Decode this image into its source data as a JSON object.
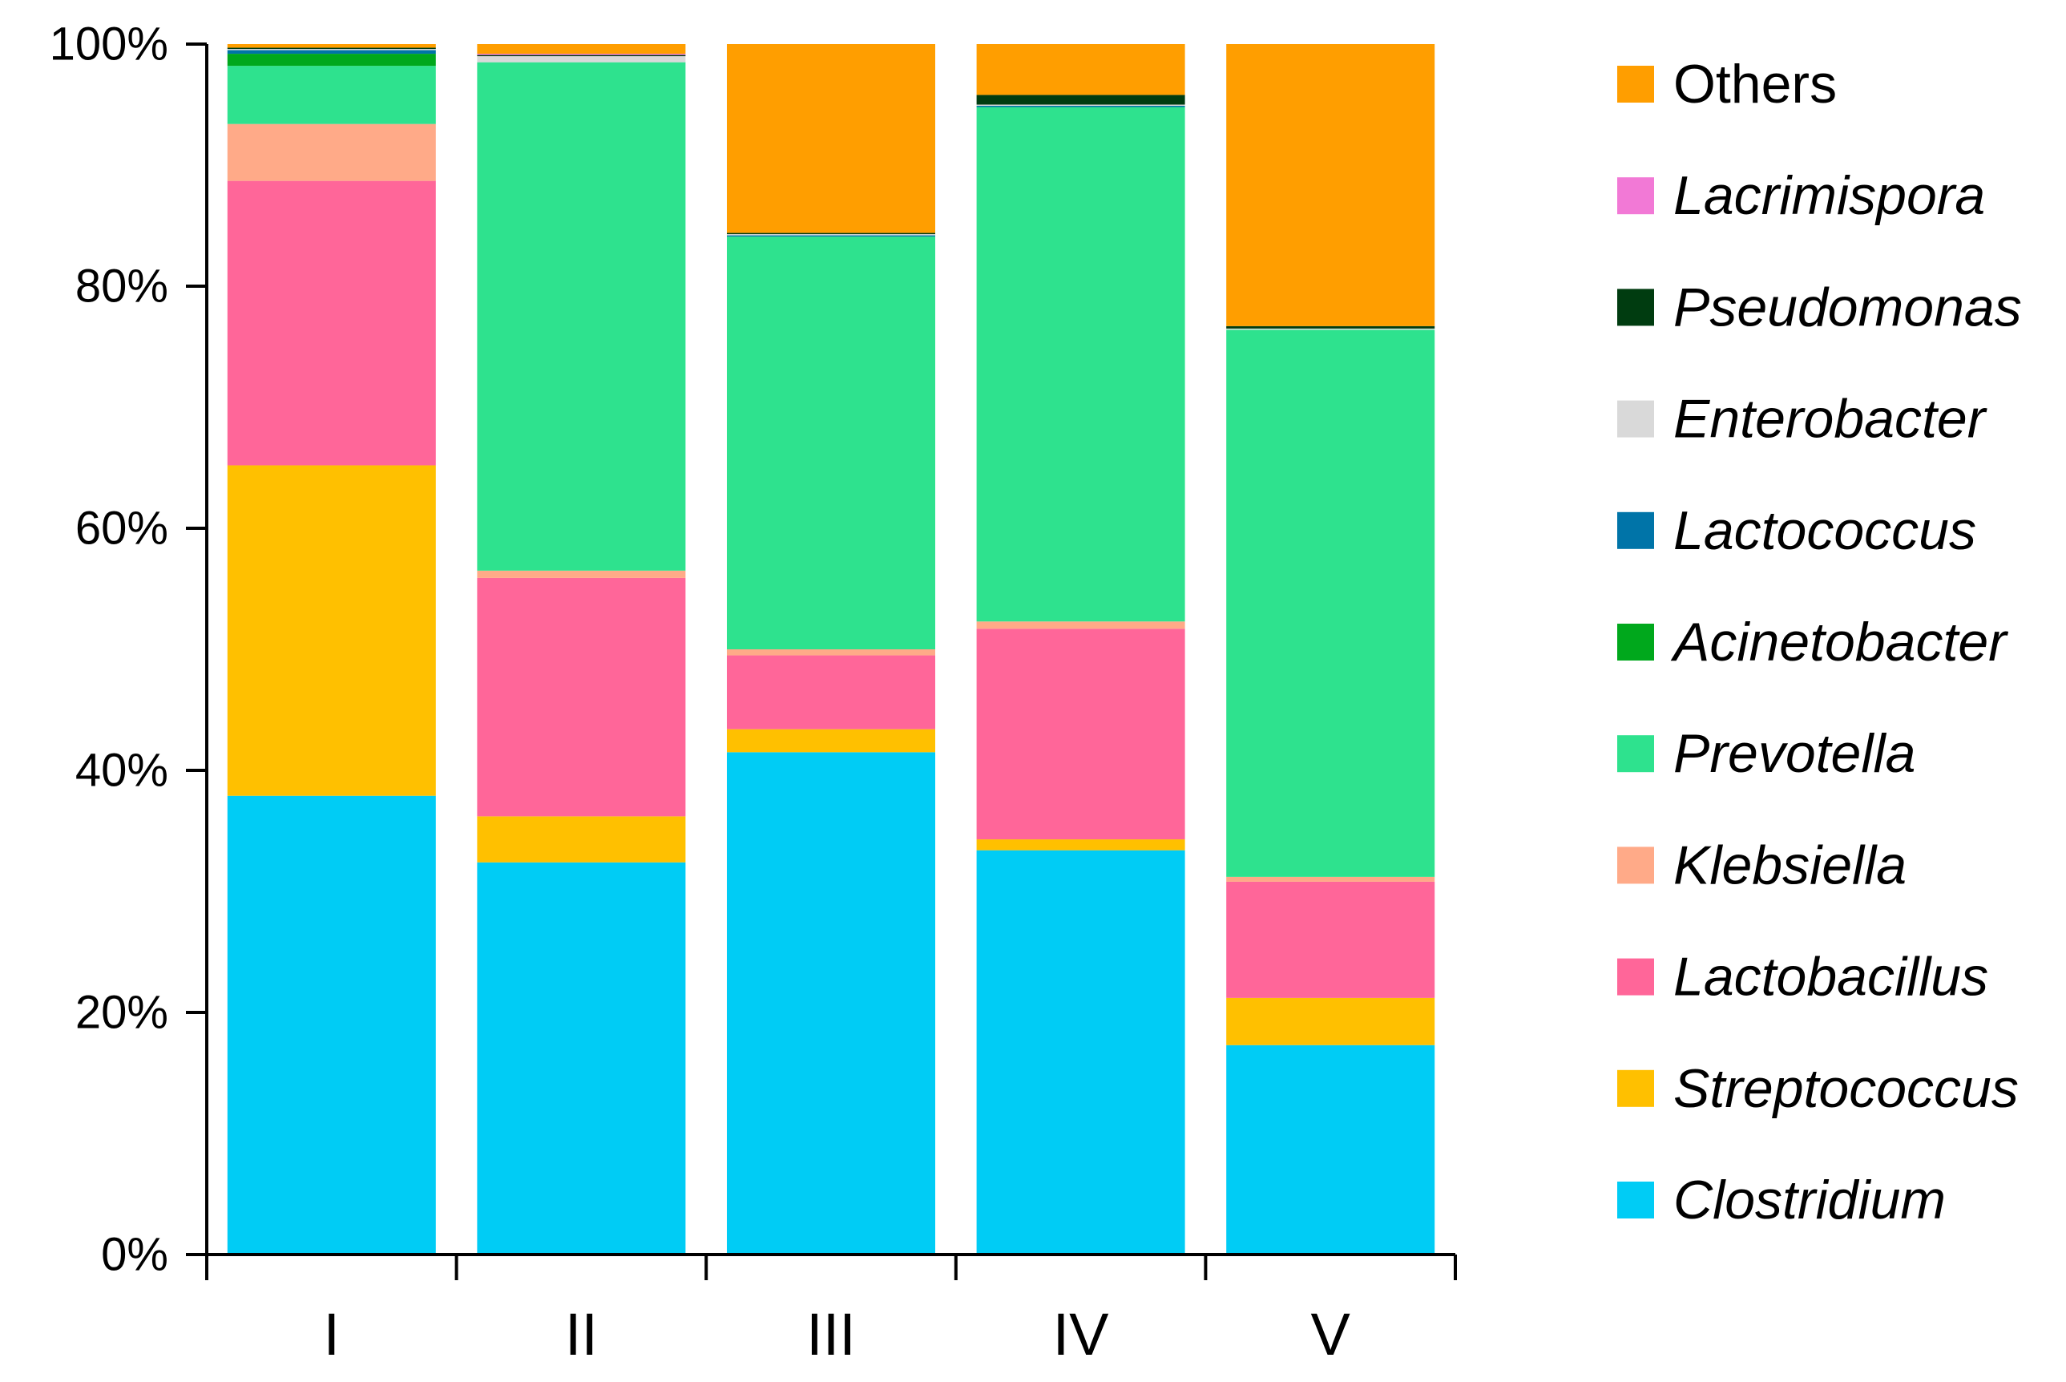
{
  "chart_data": {
    "type": "bar",
    "stacked": true,
    "percent": true,
    "title": "",
    "xlabel": "",
    "ylabel": "",
    "ylim": [
      0,
      100
    ],
    "yticks": [
      "0%",
      "20%",
      "40%",
      "60%",
      "80%",
      "100%"
    ],
    "categories": [
      "I",
      "II",
      "III",
      "IV",
      "V"
    ],
    "series": [
      {
        "name": "Clostridium",
        "color": "#00CCF5",
        "italic": true,
        "values": [
          37.9,
          32.4,
          41.5,
          33.4,
          17.3
        ]
      },
      {
        "name": "Streptococcus",
        "color": "#FFC000",
        "italic": true,
        "values": [
          27.3,
          3.8,
          1.9,
          0.9,
          3.9
        ]
      },
      {
        "name": "Lactobacillus",
        "color": "#FF6699",
        "italic": true,
        "values": [
          23.5,
          19.7,
          6.1,
          17.4,
          9.6
        ]
      },
      {
        "name": "Klebsiella",
        "color": "#FFAA88",
        "italic": true,
        "values": [
          4.7,
          0.6,
          0.5,
          0.6,
          0.4
        ]
      },
      {
        "name": "Prevotella",
        "color": "#2EE28E",
        "italic": true,
        "values": [
          4.8,
          42.0,
          34.1,
          42.5,
          45.2
        ]
      },
      {
        "name": "Acinetobacter",
        "color": "#00A81C",
        "italic": true,
        "values": [
          1.0,
          0.0,
          0.0,
          0.0,
          0.0
        ]
      },
      {
        "name": "Lactococcus",
        "color": "#0074A8",
        "italic": true,
        "values": [
          0.3,
          0.0,
          0.1,
          0.1,
          0.0
        ]
      },
      {
        "name": "Enterobacter",
        "color": "#D9D9D9",
        "italic": true,
        "values": [
          0.1,
          0.5,
          0.1,
          0.1,
          0.1
        ]
      },
      {
        "name": "Pseudomonas",
        "color": "#003C10",
        "italic": true,
        "values": [
          0.1,
          0.1,
          0.1,
          0.8,
          0.2
        ]
      },
      {
        "name": "Lacrimispora",
        "color": "#F279D6",
        "italic": true,
        "values": [
          0.0,
          0.1,
          0.0,
          0.0,
          0.0
        ]
      },
      {
        "name": "Others",
        "color": "#FF9E00",
        "italic": false,
        "values": [
          0.3,
          0.8,
          15.6,
          4.2,
          23.3
        ]
      }
    ],
    "legend_position": "right",
    "legend_order": "reverse",
    "grid": false
  }
}
